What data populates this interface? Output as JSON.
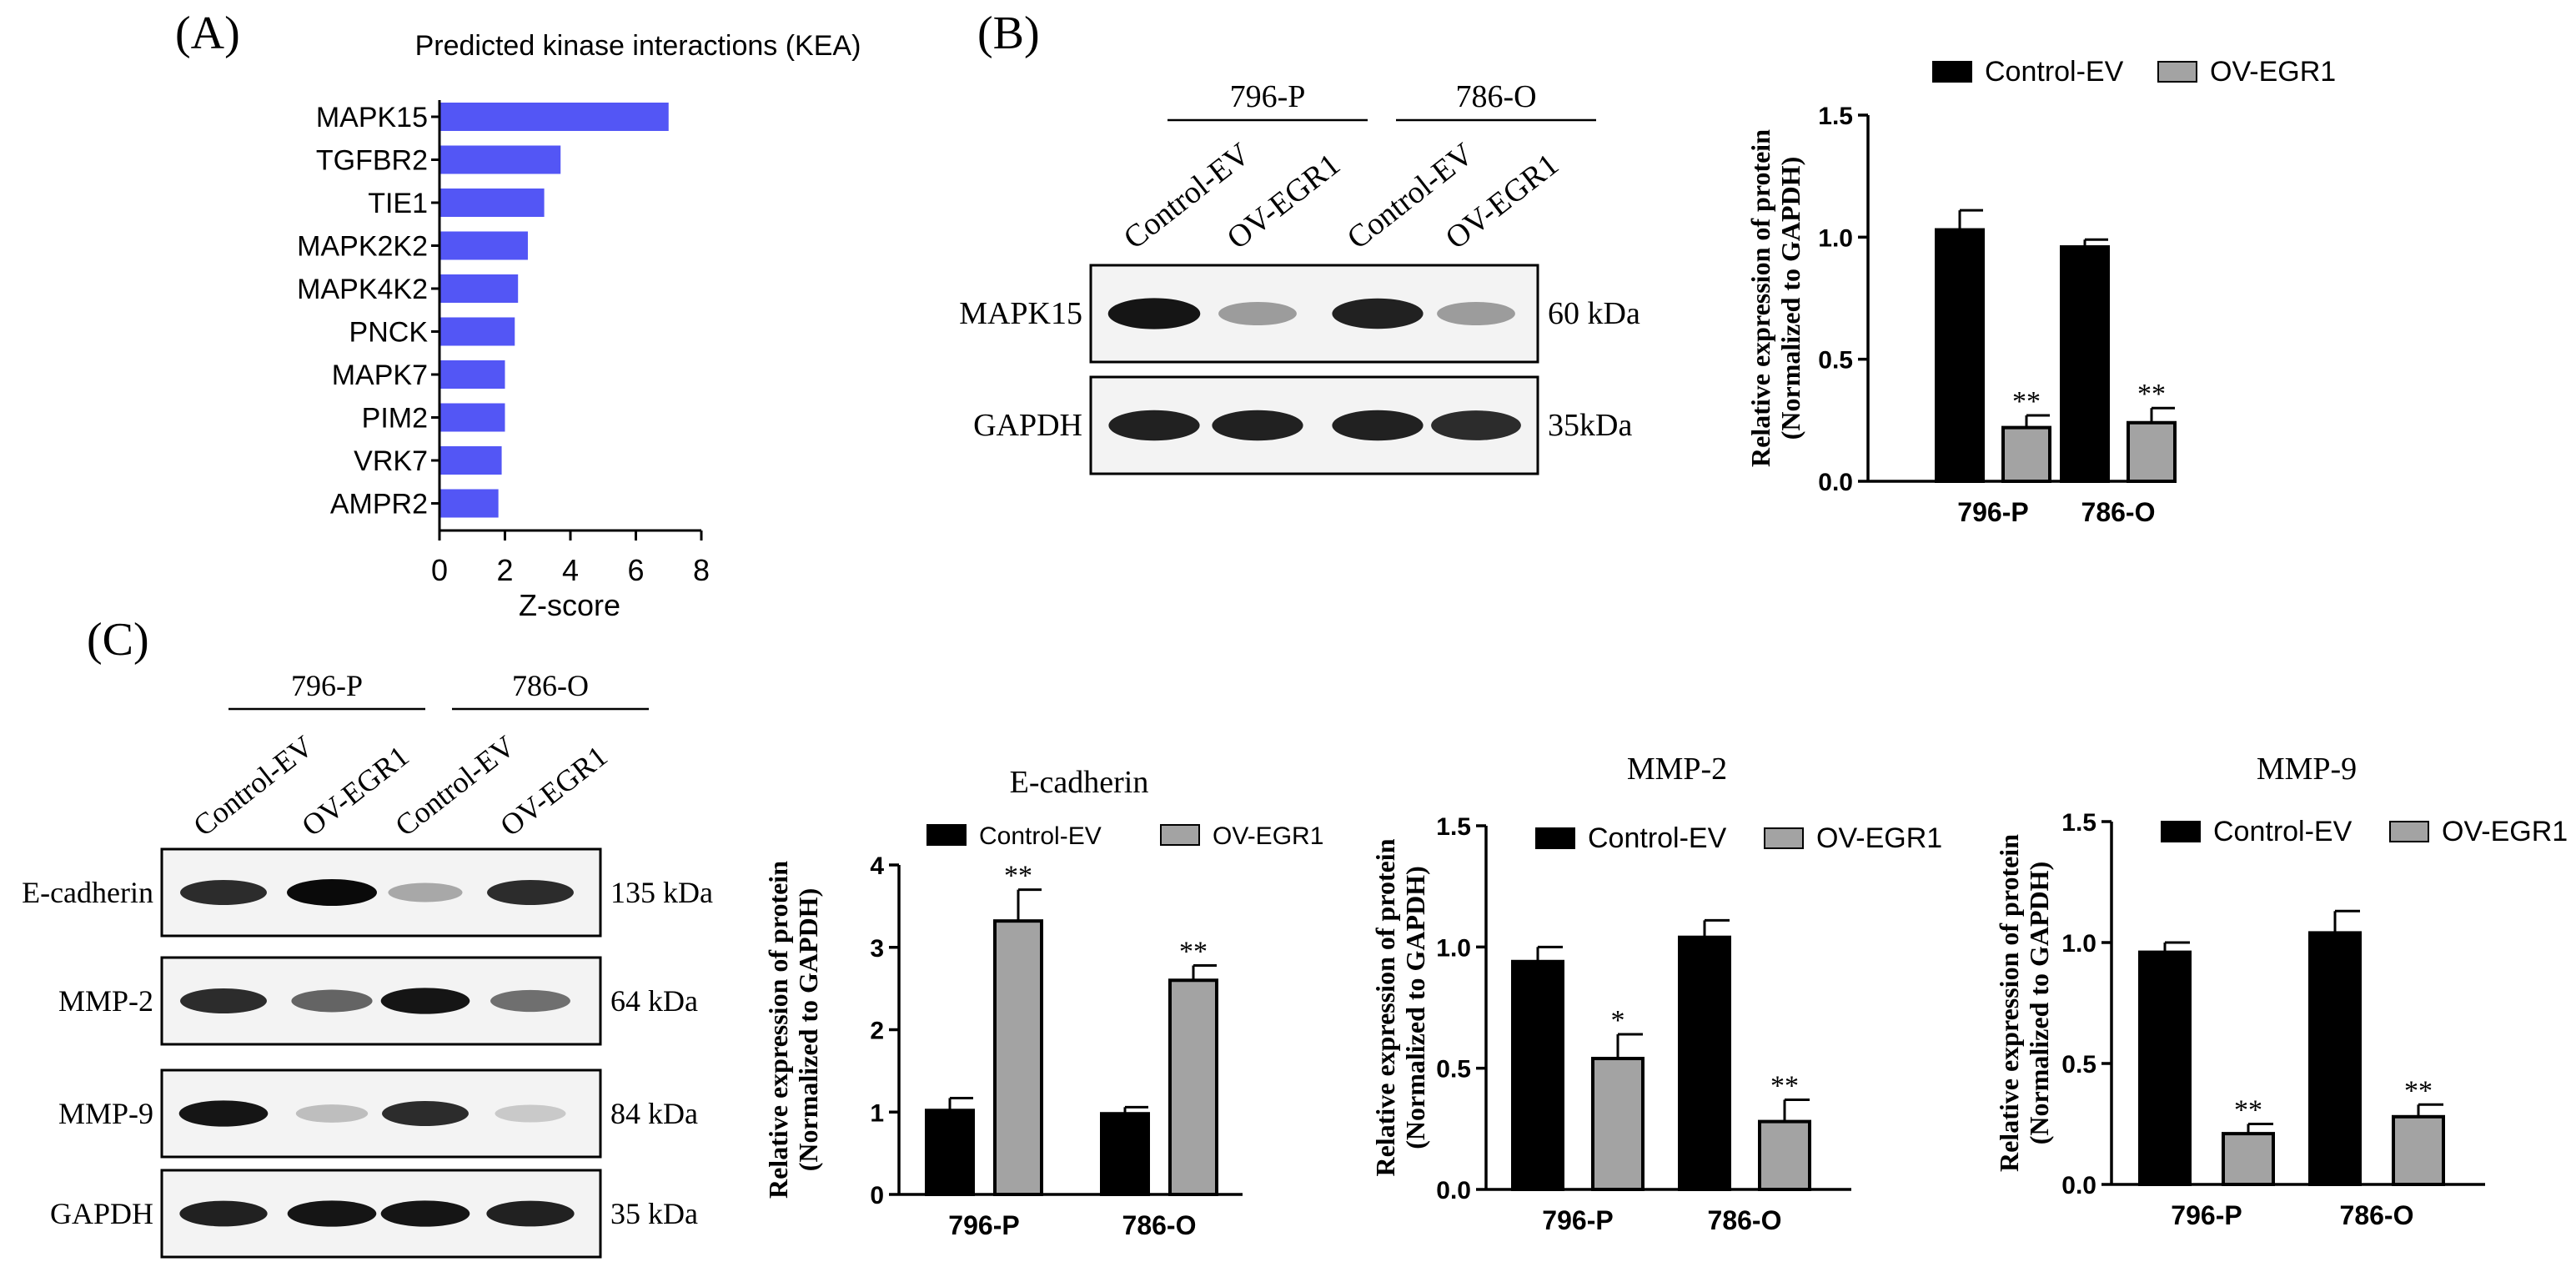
{
  "panels": {
    "A": {
      "label": "(A)"
    },
    "B": {
      "label": "(B)"
    },
    "C": {
      "label": "(C)"
    }
  },
  "colors": {
    "kea_bar": "#5356f5",
    "control": "#000000",
    "ov": "#a3a3a3"
  },
  "blot_b": {
    "groups": [
      "796-P",
      "786-O"
    ],
    "lanes": [
      "Control-EV",
      "OV-EGR1",
      "Control-EV",
      "OV-EGR1"
    ],
    "rows": [
      {
        "name": "MAPK15",
        "kda": "60 kDa",
        "intensity": [
          0.95,
          0.35,
          0.9,
          0.35
        ]
      },
      {
        "name": "GAPDH",
        "kda": "35kDa",
        "intensity": [
          0.9,
          0.9,
          0.9,
          0.85
        ]
      }
    ]
  },
  "blot_c": {
    "groups": [
      "796-P",
      "786-O"
    ],
    "lanes": [
      "Control-EV",
      "OV-EGR1",
      "Control-EV",
      "OV-EGR1"
    ],
    "rows": [
      {
        "name": "E-cadherin",
        "kda": "135 kDa",
        "intensity": [
          0.85,
          1.0,
          0.3,
          0.85
        ]
      },
      {
        "name": "MMP-2",
        "kda": "64 kDa",
        "intensity": [
          0.85,
          0.6,
          0.95,
          0.55
        ]
      },
      {
        "name": "MMP-9",
        "kda": "84 kDa",
        "intensity": [
          0.95,
          0.2,
          0.85,
          0.15
        ]
      },
      {
        "name": "GAPDH",
        "kda": "35 kDa",
        "intensity": [
          0.9,
          0.95,
          0.95,
          0.9
        ]
      }
    ]
  },
  "chart_data": [
    {
      "id": "kea",
      "type": "bar",
      "orientation": "horizontal",
      "title": "Predicted kinase interactions (KEA)",
      "xlabel": "Z-score",
      "ylabel": "",
      "categories": [
        "MAPK15",
        "TGFBR2",
        "TIE1",
        "MAPK2K2",
        "MAPK4K2",
        "PNCK",
        "MAPK7",
        "PIM2",
        "VRK7",
        "AMPR2"
      ],
      "values": [
        7.0,
        3.7,
        3.2,
        2.7,
        2.4,
        2.3,
        2.0,
        2.0,
        1.9,
        1.8
      ],
      "xlim": [
        0,
        8
      ],
      "xticks": [
        "0",
        "2",
        "4",
        "6",
        "8"
      ]
    },
    {
      "id": "b_chart",
      "type": "bar",
      "title": "",
      "ylabel": "Relative expression of protein",
      "ylabel2": "(Normalized to GAPDH)",
      "categories": [
        "796-P",
        "786-O"
      ],
      "ylim": [
        0,
        1.5
      ],
      "yticks": [
        "0.0",
        "0.5",
        "1.0",
        "1.5"
      ],
      "series": [
        {
          "name": "Control-EV",
          "values": [
            1.03,
            0.96
          ],
          "errors": [
            0.08,
            0.03
          ],
          "sig": [
            "",
            ""
          ]
        },
        {
          "name": "OV-EGR1",
          "values": [
            0.22,
            0.24
          ],
          "errors": [
            0.05,
            0.06
          ],
          "sig": [
            "**",
            "**"
          ]
        }
      ]
    },
    {
      "id": "ecad",
      "type": "bar",
      "title": "E-cadherin",
      "ylabel": "Relative expression of protein",
      "ylabel2": "(Normalized to GAPDH)",
      "categories": [
        "796-P",
        "786-O"
      ],
      "ylim": [
        0,
        4
      ],
      "yticks": [
        "0",
        "1",
        "2",
        "3",
        "4"
      ],
      "series": [
        {
          "name": "Control-EV",
          "values": [
            1.02,
            0.98
          ],
          "errors": [
            0.15,
            0.08
          ],
          "sig": [
            "",
            ""
          ]
        },
        {
          "name": "OV-EGR1",
          "values": [
            3.32,
            2.6
          ],
          "errors": [
            0.38,
            0.18
          ],
          "sig": [
            "**",
            "**"
          ]
        }
      ]
    },
    {
      "id": "mmp2",
      "type": "bar",
      "title": "MMP-2",
      "ylabel": "Relative expression of protein",
      "ylabel2": "(Normalized to GAPDH)",
      "categories": [
        "796-P",
        "786-O"
      ],
      "ylim": [
        0,
        1.5
      ],
      "yticks": [
        "0.0",
        "0.5",
        "1.0",
        "1.5"
      ],
      "series": [
        {
          "name": "Control-EV",
          "values": [
            0.94,
            1.04
          ],
          "errors": [
            0.06,
            0.07
          ],
          "sig": [
            "",
            ""
          ]
        },
        {
          "name": "OV-EGR1",
          "values": [
            0.54,
            0.28
          ],
          "errors": [
            0.1,
            0.09
          ],
          "sig": [
            "*",
            "**"
          ]
        }
      ]
    },
    {
      "id": "mmp9",
      "type": "bar",
      "title": "MMP-9",
      "ylabel": "Relative expression of protein",
      "ylabel2": "(Normalized to GAPDH)",
      "categories": [
        "796-P",
        "786-O"
      ],
      "ylim": [
        0,
        1.5
      ],
      "yticks": [
        "0.0",
        "0.5",
        "1.0",
        "1.5"
      ],
      "series": [
        {
          "name": "Control-EV",
          "values": [
            0.96,
            1.04
          ],
          "errors": [
            0.04,
            0.09
          ],
          "sig": [
            "",
            ""
          ]
        },
        {
          "name": "OV-EGR1",
          "values": [
            0.21,
            0.28
          ],
          "errors": [
            0.04,
            0.05
          ],
          "sig": [
            "**",
            "**"
          ]
        }
      ]
    }
  ]
}
